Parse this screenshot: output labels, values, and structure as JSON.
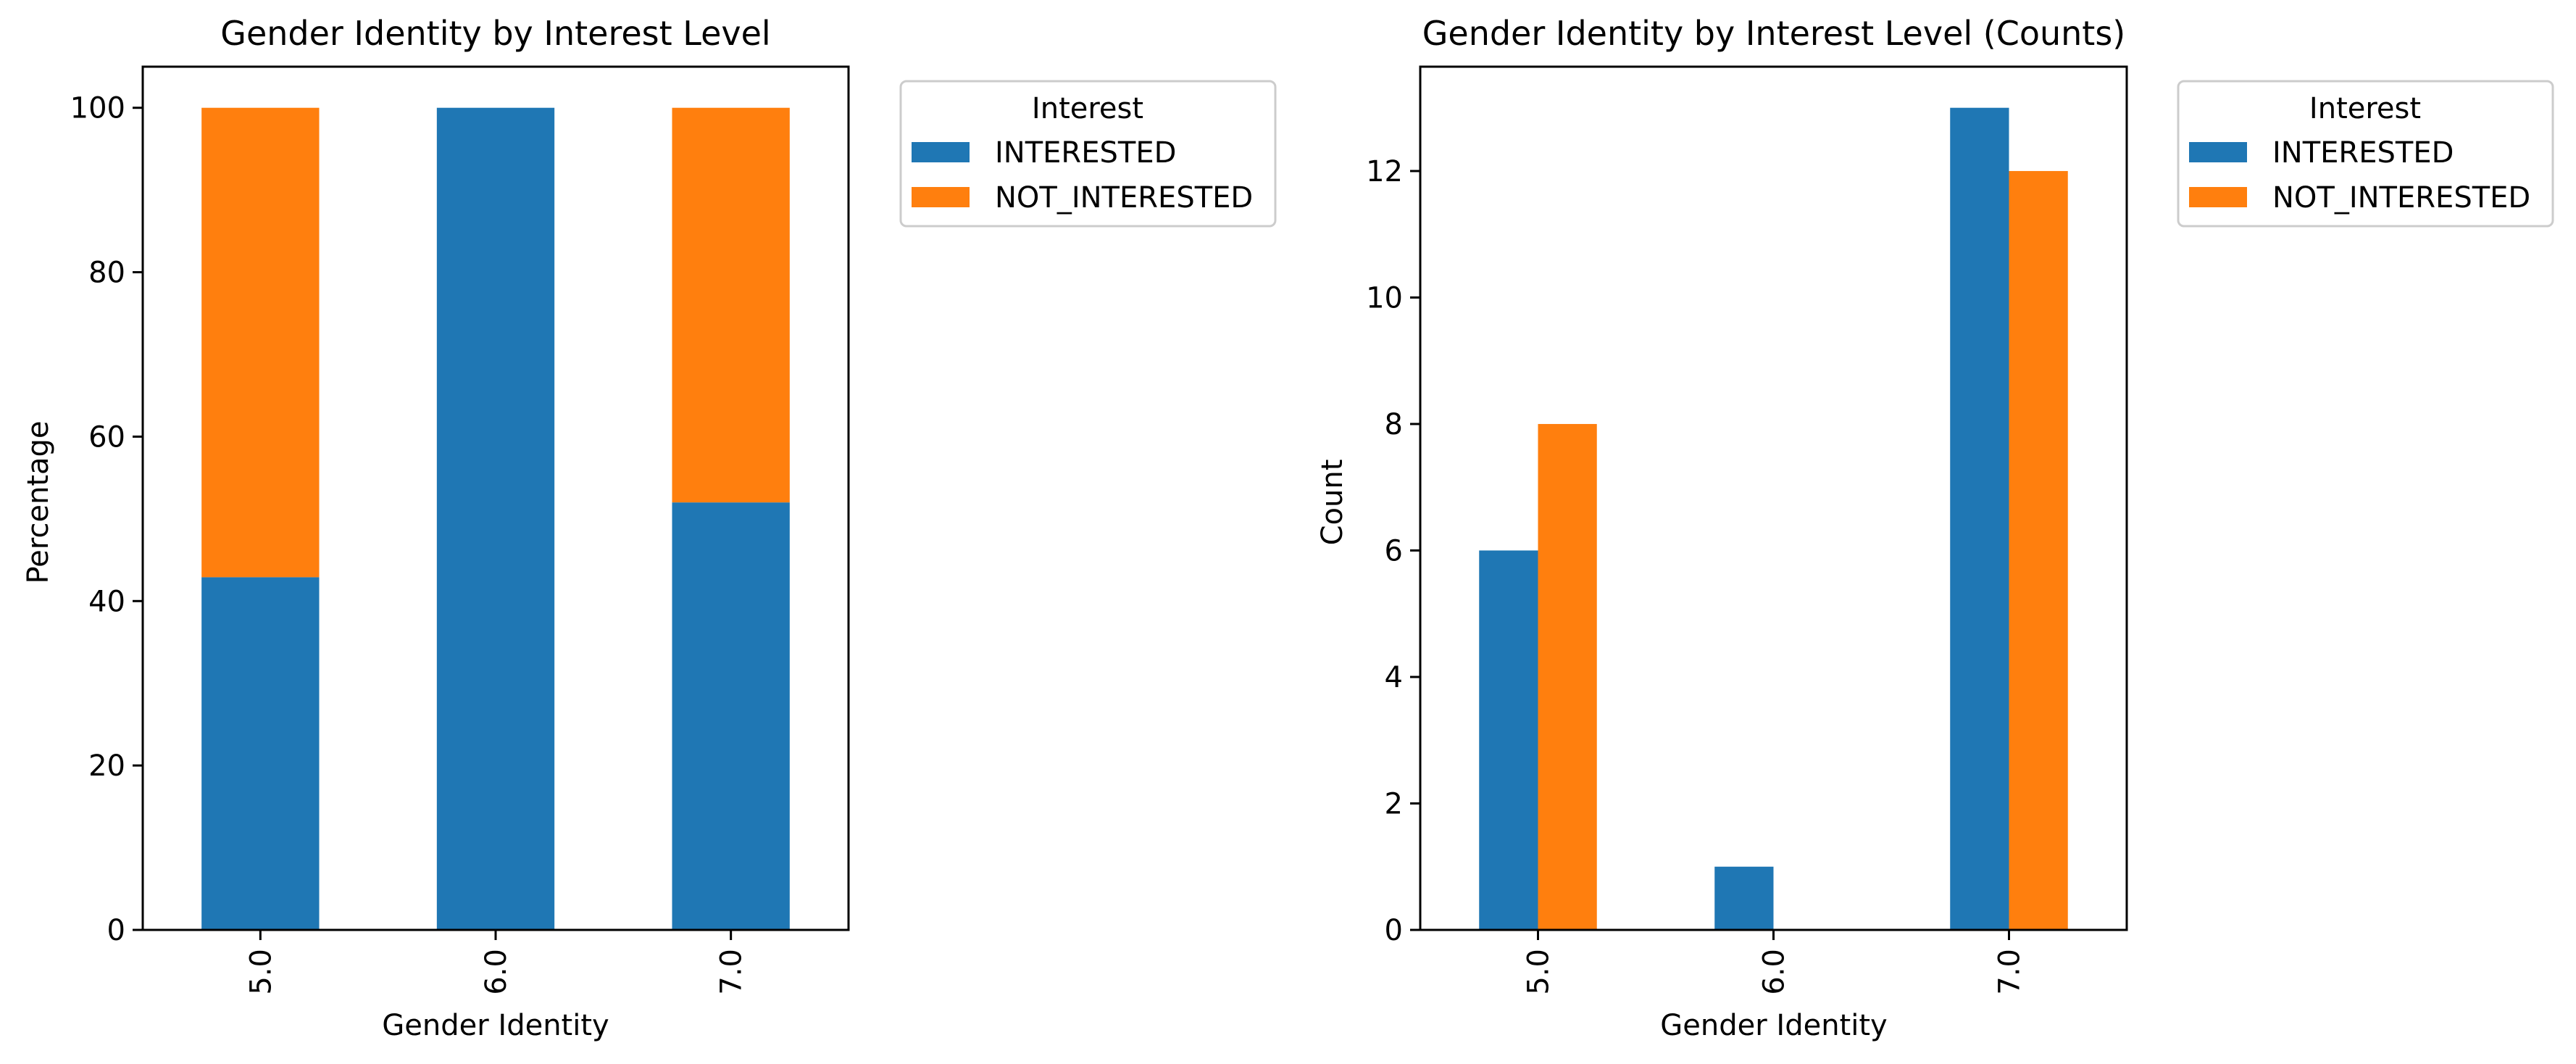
{
  "colors": {
    "interested": "#1f77b4",
    "not_interested": "#ff7f0e",
    "axis": "#000000",
    "legend_border": "#cccccc"
  },
  "chart_data": [
    {
      "type": "bar",
      "stacked": true,
      "title": "Gender Identity by Interest Level",
      "xlabel": "Gender Identity",
      "ylabel": "Percentage",
      "categories": [
        "5.0",
        "6.0",
        "7.0"
      ],
      "series": [
        {
          "name": "INTERESTED",
          "values": [
            42.9,
            100,
            52
          ]
        },
        {
          "name": "NOT_INTERESTED",
          "values": [
            57.1,
            0,
            48
          ]
        }
      ],
      "ylim": [
        0,
        105
      ],
      "yticks": [
        0,
        20,
        40,
        60,
        80,
        100
      ],
      "ytick_labels": [
        "0",
        "20",
        "40",
        "60",
        "80",
        "100"
      ],
      "legend": {
        "title": "Interest",
        "position": "outside-upper-right"
      },
      "grid": false
    },
    {
      "type": "bar",
      "stacked": false,
      "title": "Gender Identity by Interest Level (Counts)",
      "xlabel": "Gender Identity",
      "ylabel": "Count",
      "categories": [
        "5.0",
        "6.0",
        "7.0"
      ],
      "series": [
        {
          "name": "INTERESTED",
          "values": [
            6,
            1,
            13
          ]
        },
        {
          "name": "NOT_INTERESTED",
          "values": [
            8,
            0,
            12
          ]
        }
      ],
      "ylim": [
        0,
        13.65
      ],
      "yticks": [
        0,
        2,
        4,
        6,
        8,
        10,
        12
      ],
      "ytick_labels": [
        "0",
        "2",
        "4",
        "6",
        "8",
        "10",
        "12"
      ],
      "legend": {
        "title": "Interest",
        "position": "outside-upper-right"
      },
      "grid": false
    }
  ]
}
